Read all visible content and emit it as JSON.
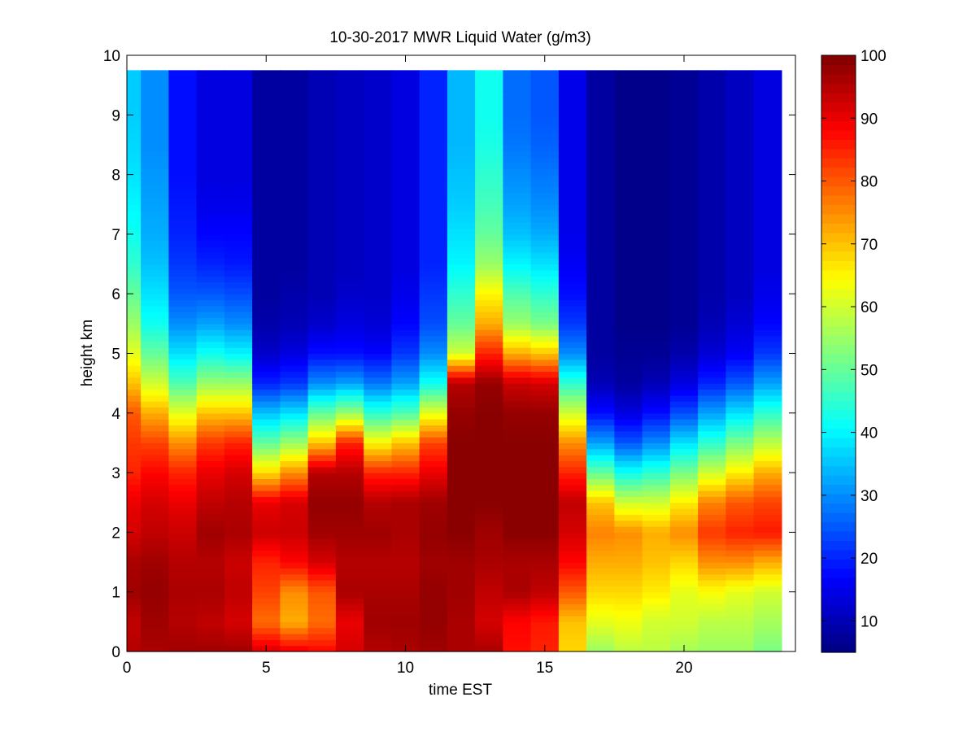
{
  "chart_data": {
    "type": "heatmap",
    "title": "10-30-2017 MWR Liquid Water (g/m3)",
    "xlabel": "time EST",
    "ylabel": "height km",
    "xlim": [
      0,
      24
    ],
    "ylim": [
      0,
      10
    ],
    "x_ticks": [
      "0",
      "5",
      "10",
      "15",
      "20"
    ],
    "y_ticks": [
      "0",
      "1",
      "2",
      "3",
      "4",
      "5",
      "6",
      "7",
      "8",
      "9",
      "10"
    ],
    "colorbar": {
      "colormap": "jet",
      "range": [
        5,
        100
      ],
      "ticks": [
        "10",
        "20",
        "30",
        "40",
        "50",
        "60",
        "70",
        "80",
        "90",
        "100"
      ]
    },
    "time_hours": [
      0,
      1,
      2,
      3,
      4,
      5,
      6,
      7,
      8,
      9,
      10,
      11,
      12,
      13,
      14,
      15,
      16,
      17,
      18,
      19,
      20,
      21,
      22,
      23
    ],
    "height_km": [
      0.0,
      0.5,
      1.0,
      1.5,
      2.0,
      2.5,
      3.0,
      3.5,
      4.0,
      4.5,
      5.0,
      5.5,
      6.0,
      6.5,
      7.0,
      7.5,
      8.0,
      8.5,
      9.0,
      9.5
    ],
    "columns": [
      [
        95,
        94,
        97,
        96,
        92,
        90,
        85,
        83,
        80,
        70,
        62,
        55,
        50,
        45,
        42,
        40,
        38,
        37,
        36,
        36
      ],
      [
        96,
        97,
        98,
        97,
        94,
        92,
        88,
        82,
        72,
        60,
        50,
        42,
        38,
        35,
        33,
        32,
        31,
        30,
        30,
        30
      ],
      [
        97,
        95,
        96,
        95,
        93,
        90,
        85,
        75,
        62,
        48,
        38,
        30,
        25,
        22,
        20,
        19,
        18,
        18,
        18,
        18
      ],
      [
        97,
        94,
        96,
        95,
        97,
        94,
        90,
        83,
        70,
        55,
        42,
        32,
        25,
        20,
        17,
        15,
        14,
        14,
        14,
        14
      ],
      [
        97,
        92,
        94,
        93,
        96,
        95,
        92,
        85,
        70,
        55,
        40,
        30,
        24,
        19,
        17,
        15,
        14,
        14,
        14,
        14
      ],
      [
        92,
        78,
        82,
        85,
        93,
        90,
        68,
        50,
        35,
        20,
        12,
        9,
        8,
        8,
        8,
        8,
        8,
        8,
        8,
        8
      ],
      [
        90,
        72,
        75,
        88,
        93,
        92,
        75,
        55,
        38,
        22,
        14,
        10,
        9,
        8,
        8,
        8,
        8,
        8,
        8,
        8
      ],
      [
        88,
        78,
        80,
        92,
        97,
        98,
        95,
        70,
        50,
        30,
        18,
        12,
        10,
        10,
        10,
        10,
        10,
        10,
        10,
        10
      ],
      [
        92,
        90,
        96,
        95,
        97,
        98,
        95,
        85,
        55,
        32,
        18,
        14,
        12,
        11,
        11,
        11,
        11,
        11,
        11,
        11
      ],
      [
        95,
        97,
        96,
        95,
        97,
        95,
        85,
        65,
        45,
        28,
        17,
        13,
        12,
        12,
        12,
        12,
        12,
        12,
        12,
        12
      ],
      [
        96,
        97,
        96,
        95,
        96,
        96,
        85,
        70,
        48,
        32,
        22,
        17,
        15,
        14,
        14,
        14,
        14,
        14,
        14,
        14
      ],
      [
        97,
        98,
        98,
        97,
        98,
        97,
        90,
        82,
        62,
        42,
        30,
        24,
        22,
        20,
        20,
        20,
        20,
        20,
        20,
        20
      ],
      [
        96,
        96,
        97,
        97,
        99,
        99,
        99,
        99,
        98,
        95,
        60,
        50,
        45,
        40,
        38,
        36,
        35,
        34,
        34,
        34
      ],
      [
        96,
        92,
        94,
        96,
        97,
        99,
        99,
        99,
        99,
        98,
        85,
        72,
        65,
        55,
        50,
        47,
        45,
        43,
        42,
        42
      ],
      [
        87,
        88,
        96,
        96,
        99,
        99,
        99,
        99,
        98,
        93,
        72,
        55,
        48,
        40,
        35,
        32,
        30,
        28,
        27,
        27
      ],
      [
        85,
        86,
        94,
        96,
        99,
        99,
        99,
        99,
        98,
        92,
        70,
        52,
        45,
        38,
        33,
        30,
        28,
        26,
        25,
        25
      ],
      [
        68,
        70,
        80,
        88,
        92,
        94,
        85,
        75,
        60,
        45,
        30,
        22,
        18,
        16,
        15,
        15,
        15,
        15,
        15,
        15
      ],
      [
        55,
        62,
        68,
        72,
        76,
        70,
        50,
        32,
        18,
        10,
        8,
        8,
        8,
        8,
        8,
        8,
        8,
        8,
        8,
        8
      ],
      [
        58,
        63,
        68,
        72,
        75,
        60,
        42,
        25,
        14,
        8,
        7,
        6,
        6,
        6,
        6,
        6,
        6,
        6,
        6,
        6
      ],
      [
        58,
        60,
        66,
        70,
        72,
        60,
        45,
        30,
        18,
        10,
        7,
        6,
        6,
        6,
        6,
        6,
        6,
        6,
        6,
        6
      ],
      [
        56,
        60,
        62,
        68,
        75,
        66,
        52,
        38,
        24,
        14,
        9,
        7,
        7,
        7,
        7,
        7,
        7,
        7,
        7,
        7
      ],
      [
        55,
        58,
        64,
        75,
        83,
        76,
        60,
        45,
        32,
        20,
        13,
        10,
        9,
        9,
        9,
        9,
        9,
        9,
        9,
        9
      ],
      [
        55,
        58,
        62,
        75,
        85,
        80,
        66,
        52,
        38,
        25,
        16,
        13,
        11,
        11,
        11,
        11,
        11,
        11,
        11,
        11
      ],
      [
        52,
        56,
        60,
        72,
        86,
        82,
        72,
        58,
        45,
        32,
        22,
        17,
        15,
        14,
        14,
        14,
        14,
        14,
        14,
        14
      ]
    ]
  }
}
